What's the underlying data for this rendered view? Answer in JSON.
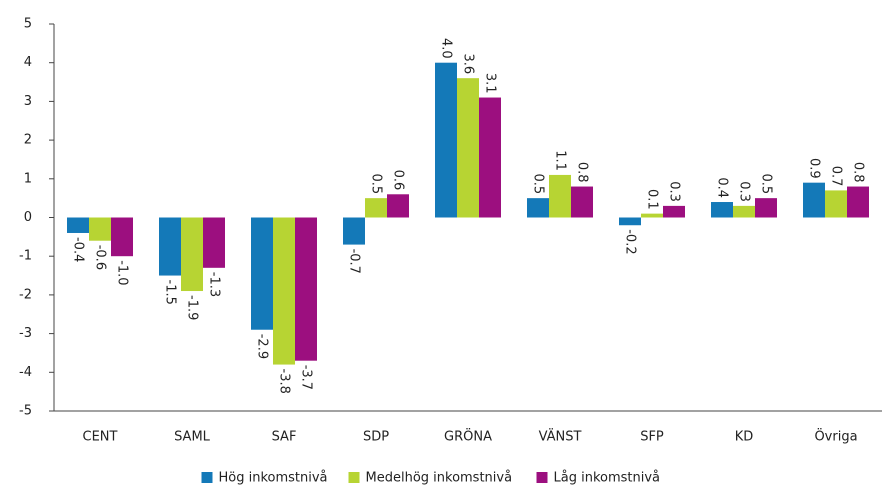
{
  "chart_data": {
    "type": "bar",
    "categories": [
      "CENT",
      "SAML",
      "SAF",
      "SDP",
      "GRÖNA",
      "VÄNST",
      "SFP",
      "KD",
      "Övriga"
    ],
    "series": [
      {
        "name": "Hög inkomstnivå",
        "color": "#1479b8",
        "values": [
          -0.4,
          -1.5,
          -2.9,
          -0.7,
          4.0,
          0.5,
          -0.2,
          0.4,
          0.9
        ],
        "value_labels": [
          "-0.4",
          "-1.5",
          "-2.9",
          "-0.7",
          "4.0",
          "0.5",
          "-0.2",
          "0.4",
          "0.9"
        ]
      },
      {
        "name": "Medelhög inkomstnivå",
        "color": "#b7d433",
        "values": [
          -0.6,
          -1.9,
          -3.8,
          0.5,
          3.6,
          1.1,
          0.1,
          0.3,
          0.7
        ],
        "value_labels": [
          "-0.6",
          "-1.9",
          "-3.8",
          "0.5",
          "3.6",
          "1.1",
          "0.1",
          "0.3",
          "0.7"
        ]
      },
      {
        "name": "Låg inkomstnivå",
        "color": "#9c0f7f",
        "values": [
          -1.0,
          -1.3,
          -3.7,
          0.6,
          3.1,
          0.8,
          0.3,
          0.5,
          0.8
        ],
        "value_labels": [
          "-1.0",
          "-1.3",
          "-3.7",
          "0.6",
          "3.1",
          "0.8",
          "0.3",
          "0.5",
          "0.8"
        ]
      }
    ],
    "ylim": [
      -5,
      5
    ],
    "yticks": [
      -5,
      -4,
      -3,
      -2,
      -1,
      0,
      1,
      2,
      3,
      4,
      5
    ],
    "grid": false,
    "legend": "bottom"
  }
}
